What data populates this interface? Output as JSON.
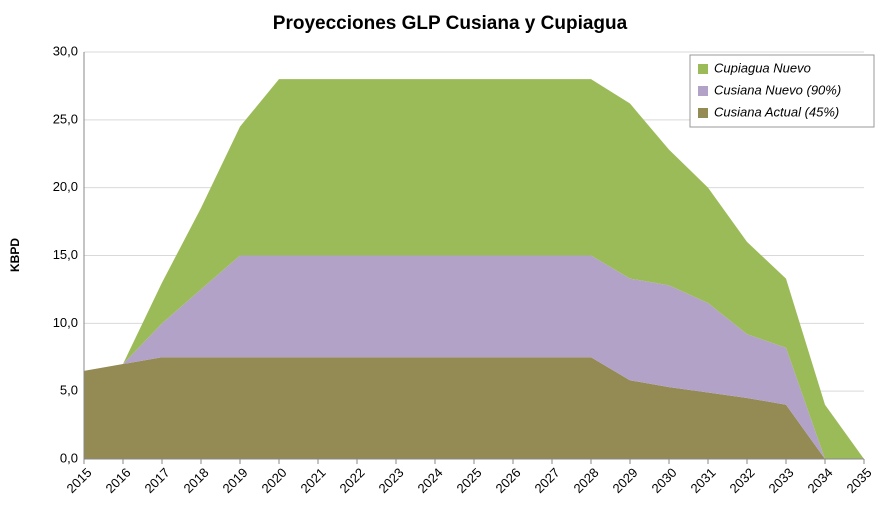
{
  "chart_data": {
    "type": "stacked_area",
    "title": "Proyecciones GLP Cusiana y Cupiagua",
    "y_label": "KBPD",
    "categories": [
      "2015",
      "2016",
      "2017",
      "2018",
      "2019",
      "2020",
      "2021",
      "2022",
      "2023",
      "2024",
      "2025",
      "2026",
      "2027",
      "2028",
      "2029",
      "2030",
      "2031",
      "2032",
      "2033",
      "2034",
      "2035"
    ],
    "series": [
      {
        "name": "Cusiana Actual (45%)",
        "color": "#948a54",
        "values": [
          6.5,
          7.0,
          7.5,
          7.5,
          7.5,
          7.5,
          7.5,
          7.5,
          7.5,
          7.5,
          7.5,
          7.5,
          7.5,
          7.5,
          5.8,
          5.3,
          4.9,
          4.5,
          4.0,
          0,
          0
        ]
      },
      {
        "name": "Cusiana Nuevo (90%)",
        "color": "#b3a2c7",
        "values": [
          0,
          0,
          2.5,
          5.0,
          7.5,
          7.5,
          7.5,
          7.5,
          7.5,
          7.5,
          7.5,
          7.5,
          7.5,
          7.5,
          7.5,
          7.5,
          6.6,
          4.7,
          4.2,
          0,
          0
        ]
      },
      {
        "name": "Cupiagua Nuevo",
        "color": "#9bbb59",
        "values": [
          0,
          0,
          3.0,
          6.0,
          9.5,
          13.0,
          13.0,
          13.0,
          13.0,
          13.0,
          13.0,
          13.0,
          13.0,
          13.0,
          12.9,
          10.0,
          8.5,
          6.8,
          5.1,
          4.0,
          0
        ]
      }
    ],
    "ylim": [
      0,
      30
    ],
    "yticks": [
      {
        "value": 0,
        "label": "0,0"
      },
      {
        "value": 5,
        "label": "5,0"
      },
      {
        "value": 10,
        "label": "10,0"
      },
      {
        "value": 15,
        "label": "15,0"
      },
      {
        "value": 20,
        "label": "20,0"
      },
      {
        "value": 25,
        "label": "25,0"
      },
      {
        "value": 30,
        "label": "30,0"
      }
    ],
    "grid": true,
    "legend": "top-right"
  }
}
